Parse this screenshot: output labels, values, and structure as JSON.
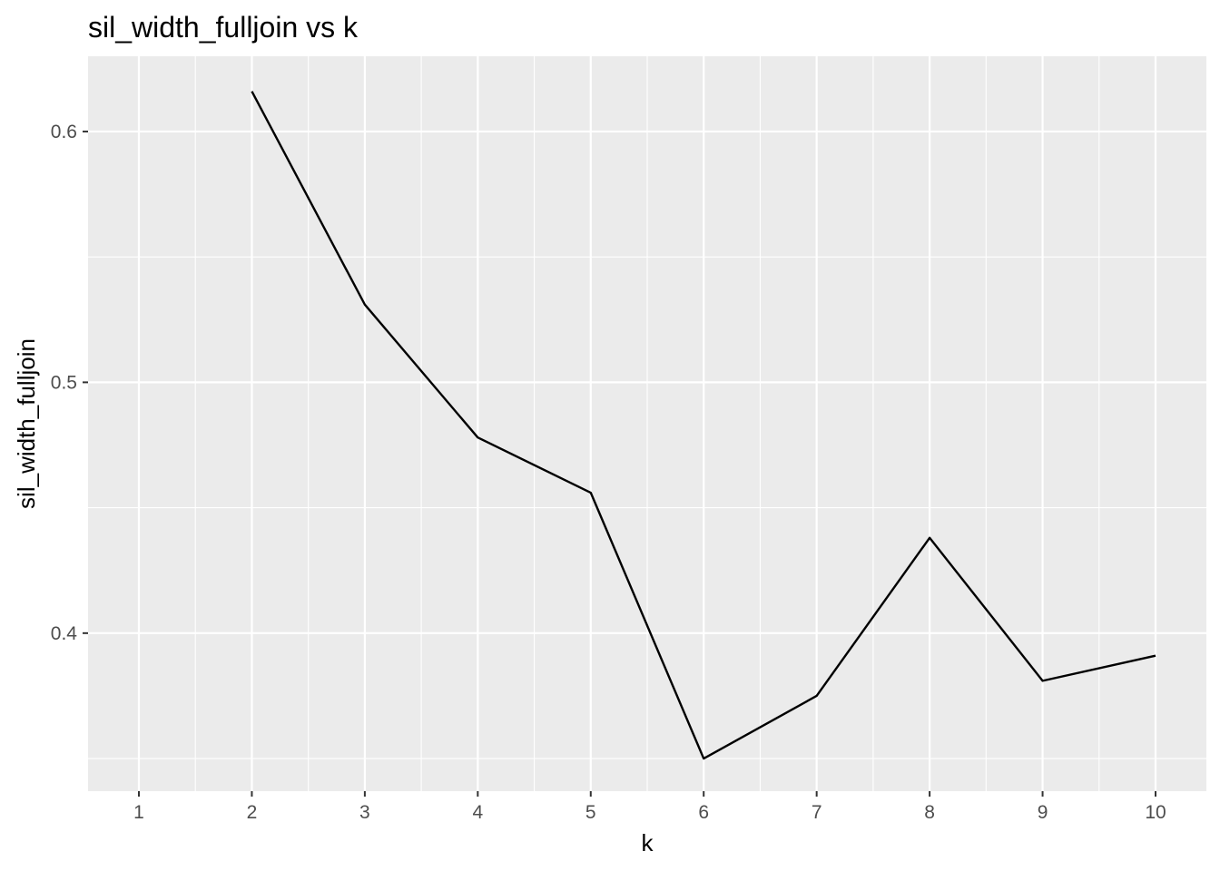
{
  "chart_data": {
    "type": "line",
    "title": "sil_width_fulljoin vs k",
    "xlabel": "k",
    "ylabel": "sil_width_fulljoin",
    "x": [
      2,
      3,
      4,
      5,
      6,
      7,
      8,
      9,
      10
    ],
    "series": [
      {
        "values": [
          0.616,
          0.531,
          0.478,
          0.456,
          0.35,
          0.375,
          0.438,
          0.381,
          0.391
        ]
      }
    ],
    "x_ticks": [
      "1",
      "2",
      "3",
      "4",
      "5",
      "6",
      "7",
      "8",
      "9",
      "10"
    ],
    "x_tick_values": [
      1,
      2,
      3,
      4,
      5,
      6,
      7,
      8,
      9,
      10
    ],
    "y_ticks": [
      "0.4",
      "0.5",
      "0.6"
    ],
    "y_tick_values": [
      0.4,
      0.5,
      0.6
    ],
    "xlim": [
      0.55,
      10.45
    ],
    "ylim": [
      0.337,
      0.63
    ],
    "grid": true,
    "legend": "none",
    "colors": {
      "panel_background": "#ebebeb",
      "grid_line": "#ffffff",
      "series_line": "#000000",
      "tick_mark": "#333333",
      "tick_label": "#4d4d4d"
    }
  }
}
